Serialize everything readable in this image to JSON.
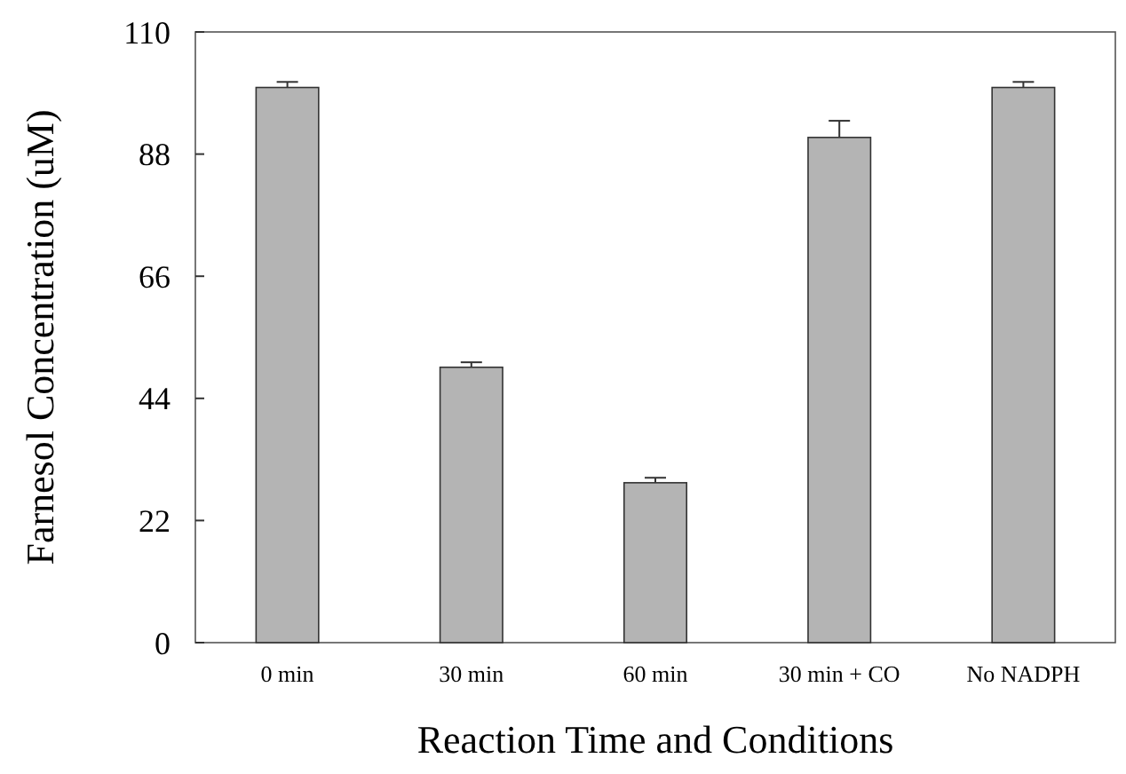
{
  "chart_data": {
    "type": "bar",
    "xlabel": "Reaction Time and Conditions",
    "ylabel": "Farnesol Concentration (uM)",
    "categories": [
      "0 min",
      "30 min",
      "60 min",
      "30 min + CO",
      "No NADPH"
    ],
    "values": [
      100,
      49.6,
      28.8,
      91,
      100
    ],
    "errors": [
      [
        100,
        101
      ],
      [
        49.6,
        50.5
      ],
      [
        28.8,
        29.7
      ],
      [
        91,
        94
      ],
      [
        100,
        101
      ]
    ],
    "color": "#b4b4b4",
    "ylim": [
      0,
      110
    ],
    "yticks": [
      0,
      22,
      44,
      66,
      88,
      110
    ],
    "grid": false
  }
}
